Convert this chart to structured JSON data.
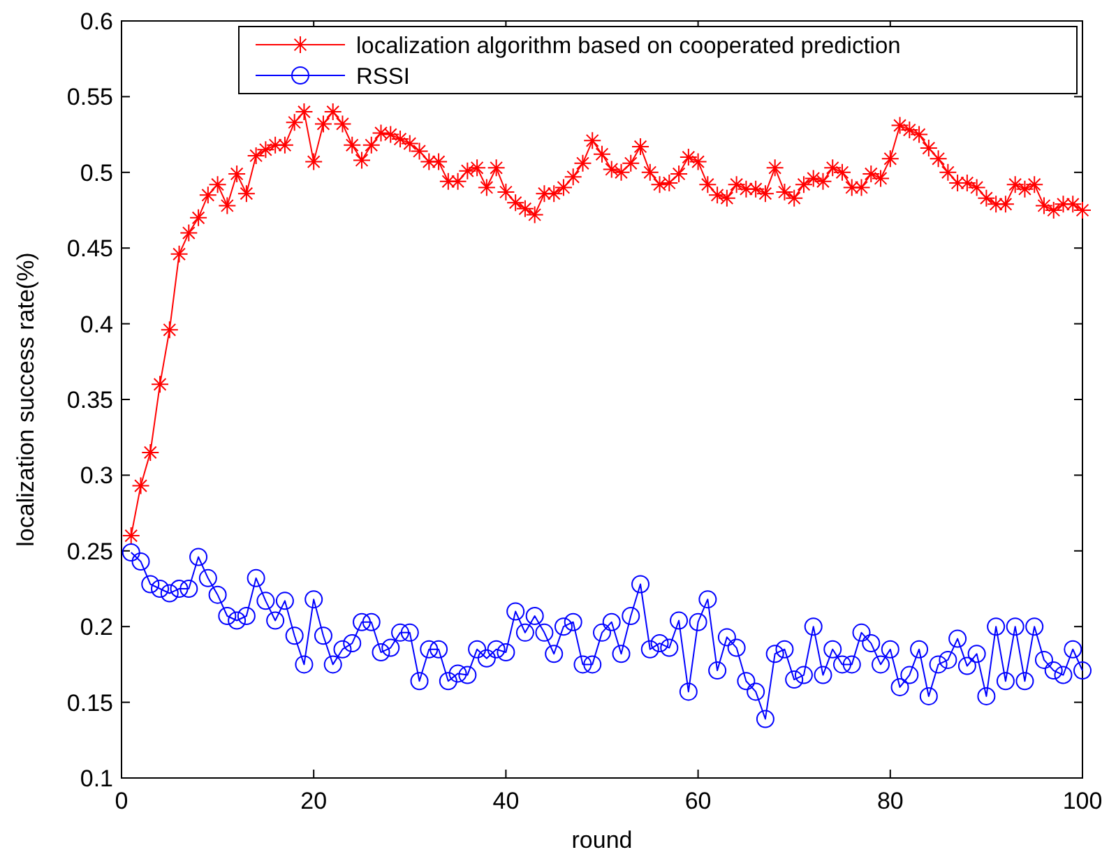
{
  "chart_data": {
    "type": "line",
    "xlabel": "round",
    "ylabel": "localization success rate(%)",
    "xlim": [
      0,
      100
    ],
    "xticks": [
      0,
      20,
      40,
      60,
      80,
      100
    ],
    "ylim": [
      0.1,
      0.6
    ],
    "yticks": [
      0.1,
      0.15,
      0.2,
      0.25,
      0.3,
      0.35,
      0.4,
      0.45,
      0.5,
      0.55,
      0.6
    ],
    "legend": "top right",
    "grid": false,
    "x": [
      1,
      2,
      3,
      4,
      5,
      6,
      7,
      8,
      9,
      10,
      11,
      12,
      13,
      14,
      15,
      16,
      17,
      18,
      19,
      20,
      21,
      22,
      23,
      24,
      25,
      26,
      27,
      28,
      29,
      30,
      31,
      32,
      33,
      34,
      35,
      36,
      37,
      38,
      39,
      40,
      41,
      42,
      43,
      44,
      45,
      46,
      47,
      48,
      49,
      50,
      51,
      52,
      53,
      54,
      55,
      56,
      57,
      58,
      59,
      60,
      61,
      62,
      63,
      64,
      65,
      66,
      67,
      68,
      69,
      70,
      71,
      72,
      73,
      74,
      75,
      76,
      77,
      78,
      79,
      80,
      81,
      82,
      83,
      84,
      85,
      86,
      87,
      88,
      89,
      90,
      91,
      92,
      93,
      94,
      95,
      96,
      97,
      98,
      99,
      100
    ],
    "series": [
      {
        "name": "localization algorithm based on cooperated prediction",
        "color": "#ff0000",
        "marker": "cross",
        "line_style": "solid",
        "values": [
          0.26,
          0.293,
          0.315,
          0.36,
          0.396,
          0.446,
          0.46,
          0.47,
          0.485,
          0.492,
          0.478,
          0.499,
          0.486,
          0.511,
          0.515,
          0.518,
          0.518,
          0.533,
          0.54,
          0.507,
          0.532,
          0.54,
          0.532,
          0.518,
          0.508,
          0.518,
          0.526,
          0.525,
          0.522,
          0.519,
          0.514,
          0.507,
          0.507,
          0.494,
          0.494,
          0.501,
          0.503,
          0.49,
          0.503,
          0.487,
          0.48,
          0.476,
          0.472,
          0.486,
          0.486,
          0.49,
          0.497,
          0.506,
          0.521,
          0.512,
          0.502,
          0.5,
          0.506,
          0.517,
          0.5,
          0.492,
          0.493,
          0.499,
          0.51,
          0.507,
          0.492,
          0.485,
          0.483,
          0.492,
          0.489,
          0.489,
          0.486,
          0.503,
          0.487,
          0.483,
          0.492,
          0.496,
          0.494,
          0.503,
          0.5,
          0.49,
          0.49,
          0.499,
          0.496,
          0.509,
          0.531,
          0.528,
          0.525,
          0.516,
          0.509,
          0.5,
          0.493,
          0.493,
          0.49,
          0.483,
          0.479,
          0.479,
          0.492,
          0.489,
          0.492,
          0.478,
          0.475,
          0.479,
          0.479,
          0.475
        ]
      },
      {
        "name": "RSSI",
        "color": "#0000ff",
        "marker": "circle",
        "line_style": "solid",
        "values": [
          0.249,
          0.243,
          0.228,
          0.225,
          0.222,
          0.225,
          0.225,
          0.246,
          0.232,
          0.221,
          0.207,
          0.204,
          0.207,
          0.232,
          0.217,
          0.204,
          0.217,
          0.194,
          0.175,
          0.218,
          0.194,
          0.175,
          0.185,
          0.189,
          0.203,
          0.203,
          0.183,
          0.186,
          0.196,
          0.196,
          0.164,
          0.185,
          0.185,
          0.164,
          0.169,
          0.168,
          0.185,
          0.179,
          0.185,
          0.183,
          0.21,
          0.196,
          0.207,
          0.196,
          0.182,
          0.2,
          0.203,
          0.175,
          0.175,
          0.196,
          0.203,
          0.182,
          0.207,
          0.228,
          0.185,
          0.189,
          0.186,
          0.204,
          0.157,
          0.203,
          0.218,
          0.171,
          0.193,
          0.186,
          0.164,
          0.157,
          0.139,
          0.182,
          0.185,
          0.165,
          0.168,
          0.2,
          0.168,
          0.185,
          0.175,
          0.175,
          0.196,
          0.189,
          0.175,
          0.185,
          0.16,
          0.168,
          0.185,
          0.154,
          0.175,
          0.178,
          0.192,
          0.174,
          0.182,
          0.154,
          0.2,
          0.164,
          0.2,
          0.164,
          0.2,
          0.178,
          0.171,
          0.168,
          0.185,
          0.171
        ]
      }
    ]
  }
}
